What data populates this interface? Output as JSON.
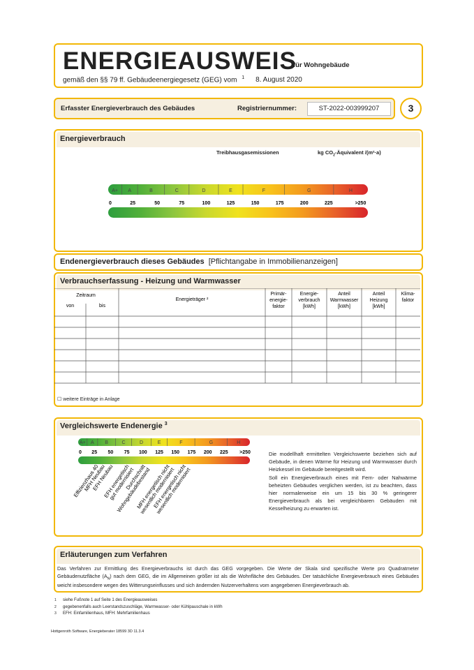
{
  "header": {
    "title": "ENERGIEAUSWEIS",
    "subtitle": "für Wohngebäude",
    "law": "gemäß den §§ 79 ff. Gebäudeenergiegesetz (GEG) vom",
    "law_ref": "1",
    "date": "8. August 2020"
  },
  "registry": {
    "label": "Erfasster Energieverbrauch des Gebäudes",
    "number_label": "Registriernummer:",
    "number": "ST-2022-003999207",
    "page": "3"
  },
  "energy": {
    "title": "Energieverbrauch",
    "emissions": "Treibhausgasemissionen",
    "unit_parts": [
      "kg CO",
      "2",
      "-Äquivalent /(m²·a)"
    ],
    "classes": [
      "A+",
      "A",
      "B",
      "C",
      "D",
      "E",
      "F",
      "G",
      "H"
    ],
    "ticks": [
      "0",
      "25",
      "50",
      "75",
      "100",
      "125",
      "150",
      "175",
      "200",
      "225",
      ">250"
    ]
  },
  "final": {
    "title": "Endenergieverbrauch dieses Gebäudes",
    "note": "[Pflichtangabe in Immobilienanzeigen]"
  },
  "record": {
    "title": "Verbrauchserfassung - Heizung und Warmwasser",
    "period": "Zeitraum",
    "columns": [
      [
        "von"
      ],
      [
        "bis"
      ],
      [
        "Energieträger ²"
      ],
      [
        "Primär-",
        "energie-",
        "faktor"
      ],
      [
        "Energie-",
        "verbrauch",
        "[kWh]"
      ],
      [
        "Anteil",
        "Warmwasser",
        "[kWh]"
      ],
      [
        "Anteil",
        "Heizung",
        "[kWh]"
      ],
      [
        "Klima-",
        "faktor"
      ]
    ],
    "more": "☐  weitere Einträge in Anlage"
  },
  "comparison": {
    "title": "Vergleichswerte Endenergie",
    "title_ref": "3",
    "labels": [
      [
        "Effizienzhaus 40"
      ],
      [
        "MFH Neubau"
      ],
      [
        "EFH Neubau"
      ],
      [
        "EFH energetisch",
        "gut modernisiert"
      ],
      [
        "Durchschnitt",
        "Wohngebäudebestand"
      ],
      [
        "MFH energetisch nicht",
        "wesentlich modernisiert"
      ],
      [
        "EFH energetisch nicht",
        "wesentlich modernisiert"
      ]
    ],
    "text": [
      "Die modellhaft ermittelten Vergleichswerte beziehen sich auf Gebäude, in denen Wärme für Heizung und Warmwasser durch Heizkessel im Gebäude bereitgestellt wird.",
      "Soll ein Energieverbrauch eines mit Fern- oder Nahwärme beheizten Gebäudes verglichen werden, ist zu beachten, dass hier normalerweise ein um 15 bis 30 % geringerer Energieverbrauch als bei vergleichbaren Gebäuden mit Kesselheizung zu erwarten ist."
    ]
  },
  "explanation": {
    "title": "Erläuterungen zum Verfahren",
    "text_parts": [
      "Das Verfahren zur Ermittlung des Energieverbrauchs ist durch das GEG vorgegeben. Die Werte der Skala sind spezifische Werte pro Quadratmeter Gebäudenutzfläche (A",
      "N",
      ") nach dem GEG, die im Allgemeinen größer ist als die Wohnfläche des Gebäudes. Der tatsächliche Energieverbrauch eines Gebäudes weicht insbesondere wegen des Witterungseinflusses und sich ändernden Nutzerverhaltens vom angegebenen Energieverbrauch ab."
    ]
  },
  "footnotes": [
    {
      "mark": "1",
      "text": "siehe Fußnote 1 auf Seite 1 des Energieausweises"
    },
    {
      "mark": "2",
      "text": "gegebenenfalls auch Leerstandszuschläge, Warmwasser- oder Kühlpauschale in kWh"
    },
    {
      "mark": "3",
      "text": "EFH: Einfamilienhaus, MFH: Mehrfamilienhaus"
    }
  ],
  "software": "Hottgenroth Software, Energieberater 18599 3D 11.3.4"
}
